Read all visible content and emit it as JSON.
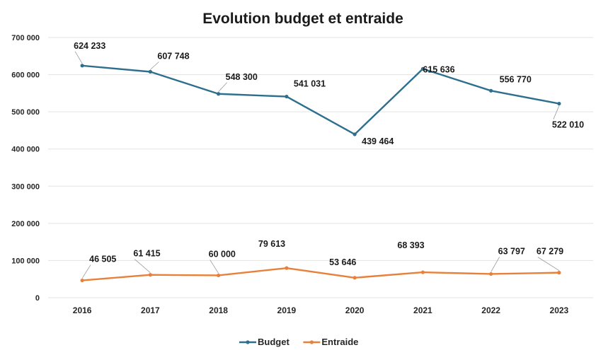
{
  "chart_data": {
    "type": "line",
    "title": "Evolution budget et  entraide",
    "xlabel": "",
    "ylabel": "",
    "categories": [
      "2016",
      "2017",
      "2018",
      "2019",
      "2020",
      "2021",
      "2022",
      "2023"
    ],
    "ylim": [
      0,
      700000
    ],
    "y_ticks": [
      0,
      100000,
      200000,
      300000,
      400000,
      500000,
      600000,
      700000
    ],
    "y_tick_labels": [
      "0",
      "100 000",
      "200 000",
      "300 000",
      "400 000",
      "500 000",
      "600 000",
      "700 000"
    ],
    "grid": true,
    "legend_position": "bottom",
    "series": [
      {
        "name": "Budget",
        "color": "#2e6f8e",
        "values": [
          624233,
          607748,
          548300,
          541031,
          439464,
          615636,
          556770,
          522010
        ],
        "labels": [
          "624 233",
          "607 748",
          "548 300",
          "541 031",
          "439 464",
          "615 636",
          "556 770",
          "522 010"
        ]
      },
      {
        "name": "Entraide",
        "color": "#e8803a",
        "values": [
          46505,
          61415,
          60000,
          79613,
          53646,
          68393,
          63797,
          67279
        ],
        "labels": [
          "46 505",
          "61 415",
          "60 000",
          "79 613",
          "53 646",
          "68 393",
          "63 797",
          "67 279"
        ]
      }
    ]
  }
}
